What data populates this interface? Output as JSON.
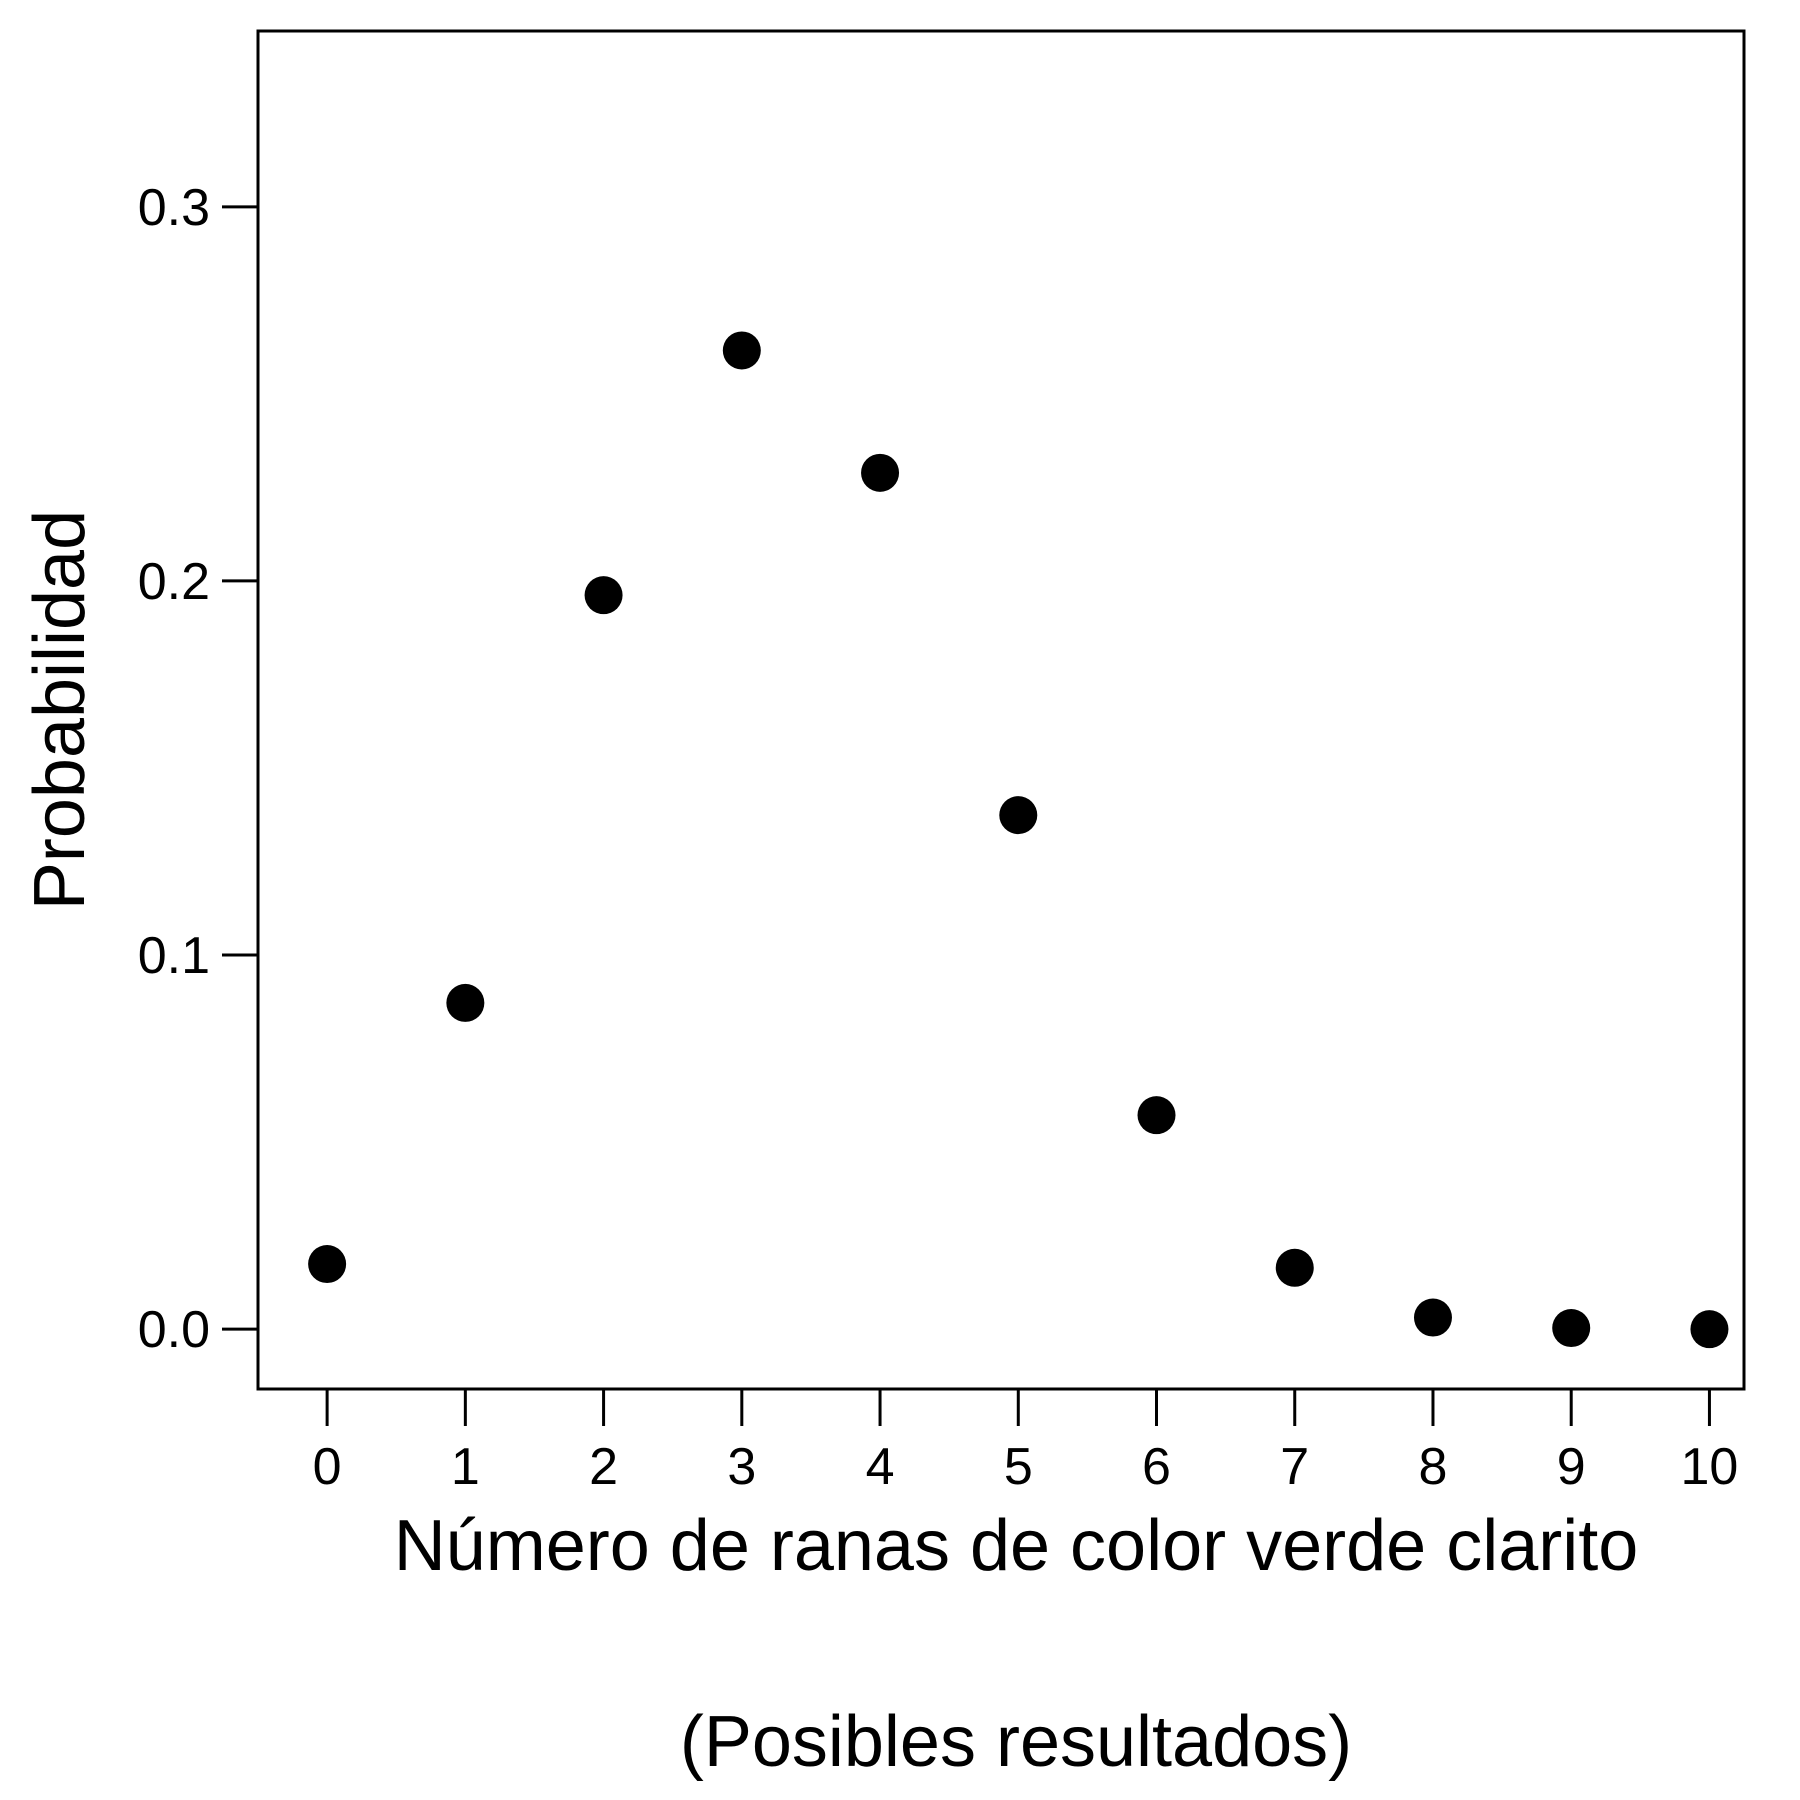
{
  "chart_data": {
    "type": "scatter",
    "title": "",
    "xlabel": "Número de ranas de color verde clarito",
    "xlabel_sub": "(Posibles resultados)",
    "ylabel": "Probabilidad",
    "x_ticks": [
      "0",
      "1",
      "2",
      "3",
      "4",
      "5",
      "6",
      "7",
      "8",
      "9",
      "10"
    ],
    "y_ticks": [
      "0.0",
      "0.1",
      "0.2",
      "0.3"
    ],
    "y_tick_values": [
      0.0,
      0.1,
      0.2,
      0.3
    ],
    "xlim": [
      -0.5,
      10.25
    ],
    "ylim": [
      -0.016,
      0.347
    ],
    "grid": false,
    "marker_color": "#000000",
    "x": [
      0,
      1,
      2,
      3,
      4,
      5,
      6,
      7,
      8,
      9,
      10
    ],
    "y": [
      0.0174,
      0.0872,
      0.1962,
      0.2616,
      0.2289,
      0.1374,
      0.0572,
      0.0164,
      0.0031,
      0.0003,
      0.0
    ]
  }
}
